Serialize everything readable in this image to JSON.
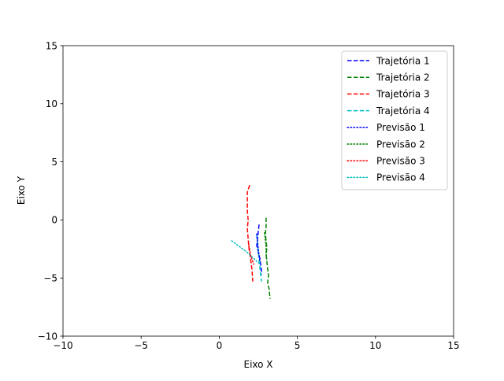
{
  "chart_data": {
    "type": "line",
    "title": "",
    "xlabel": "Eixo X",
    "ylabel": "Eixo Y",
    "xlim": [
      -10,
      15
    ],
    "ylim": [
      -10,
      15
    ],
    "xticks": [
      "−10",
      "−5",
      "0",
      "5",
      "10",
      "15"
    ],
    "yticks": [
      "−10",
      "−5",
      "0",
      "5",
      "10",
      "15"
    ],
    "grid": false,
    "legend_position": "top-right",
    "series": [
      {
        "name": "Trajetória 1",
        "color": "#0000ff",
        "style": "dashed",
        "x": [
          2.55,
          2.5,
          2.45,
          2.4,
          2.5,
          2.6,
          2.65,
          2.7,
          2.7
        ],
        "y": [
          -0.4,
          -1.0,
          -1.6,
          -2.2,
          -2.8,
          -3.3,
          -3.8,
          -4.3,
          -4.7
        ]
      },
      {
        "name": "Trajetória 2",
        "color": "#008000",
        "style": "dashed",
        "x": [
          3.0,
          3.0,
          2.95,
          3.0,
          3.05,
          3.0,
          3.05,
          3.1,
          3.15,
          3.1,
          3.2,
          3.25
        ],
        "y": [
          0.2,
          -0.6,
          -1.2,
          -1.8,
          -2.4,
          -3.0,
          -3.6,
          -4.2,
          -4.8,
          -5.4,
          -6.0,
          -6.8
        ]
      },
      {
        "name": "Trajetória 3",
        "color": "#ff0000",
        "style": "dashed",
        "x": [
          1.95,
          1.8,
          1.8,
          1.8,
          1.85,
          1.8,
          1.85,
          1.9,
          2.0,
          2.1,
          2.15
        ],
        "y": [
          3.0,
          2.4,
          1.6,
          0.8,
          0.0,
          -0.8,
          -1.6,
          -2.4,
          -3.3,
          -4.3,
          -5.3
        ]
      },
      {
        "name": "Trajetória 4",
        "color": "#00bfbf",
        "style": "dashed",
        "x": [
          2.4,
          2.45,
          2.5,
          2.55,
          2.6,
          2.65,
          2.7
        ],
        "y": [
          -1.3,
          -2.0,
          -2.8,
          -3.4,
          -4.0,
          -4.7,
          -5.3
        ]
      },
      {
        "name": "Previsão 1",
        "color": "#0000ff",
        "style": "dotted",
        "x": [
          2.4,
          2.45,
          2.5,
          2.55,
          2.6
        ],
        "y": [
          -1.2,
          -1.9,
          -2.5,
          -3.0,
          -3.5
        ]
      },
      {
        "name": "Previsão 2",
        "color": "#008000",
        "style": "dotted",
        "x": [
          2.9,
          2.95,
          3.0,
          3.0,
          3.05
        ],
        "y": [
          -1.1,
          -1.7,
          -2.3,
          -2.9,
          -3.5
        ]
      },
      {
        "name": "Previsão 3",
        "color": "#ff0000",
        "style": "dotted",
        "x": [
          1.9,
          1.95,
          2.0,
          2.1,
          2.2
        ],
        "y": [
          -2.2,
          -2.6,
          -3.0,
          -3.4,
          -3.8
        ]
      },
      {
        "name": "Previsão 4",
        "color": "#00bfbf",
        "style": "dotted",
        "x": [
          0.8,
          1.3,
          1.8,
          2.2,
          2.6
        ],
        "y": [
          -1.8,
          -2.3,
          -2.8,
          -3.3,
          -3.8
        ]
      }
    ]
  }
}
